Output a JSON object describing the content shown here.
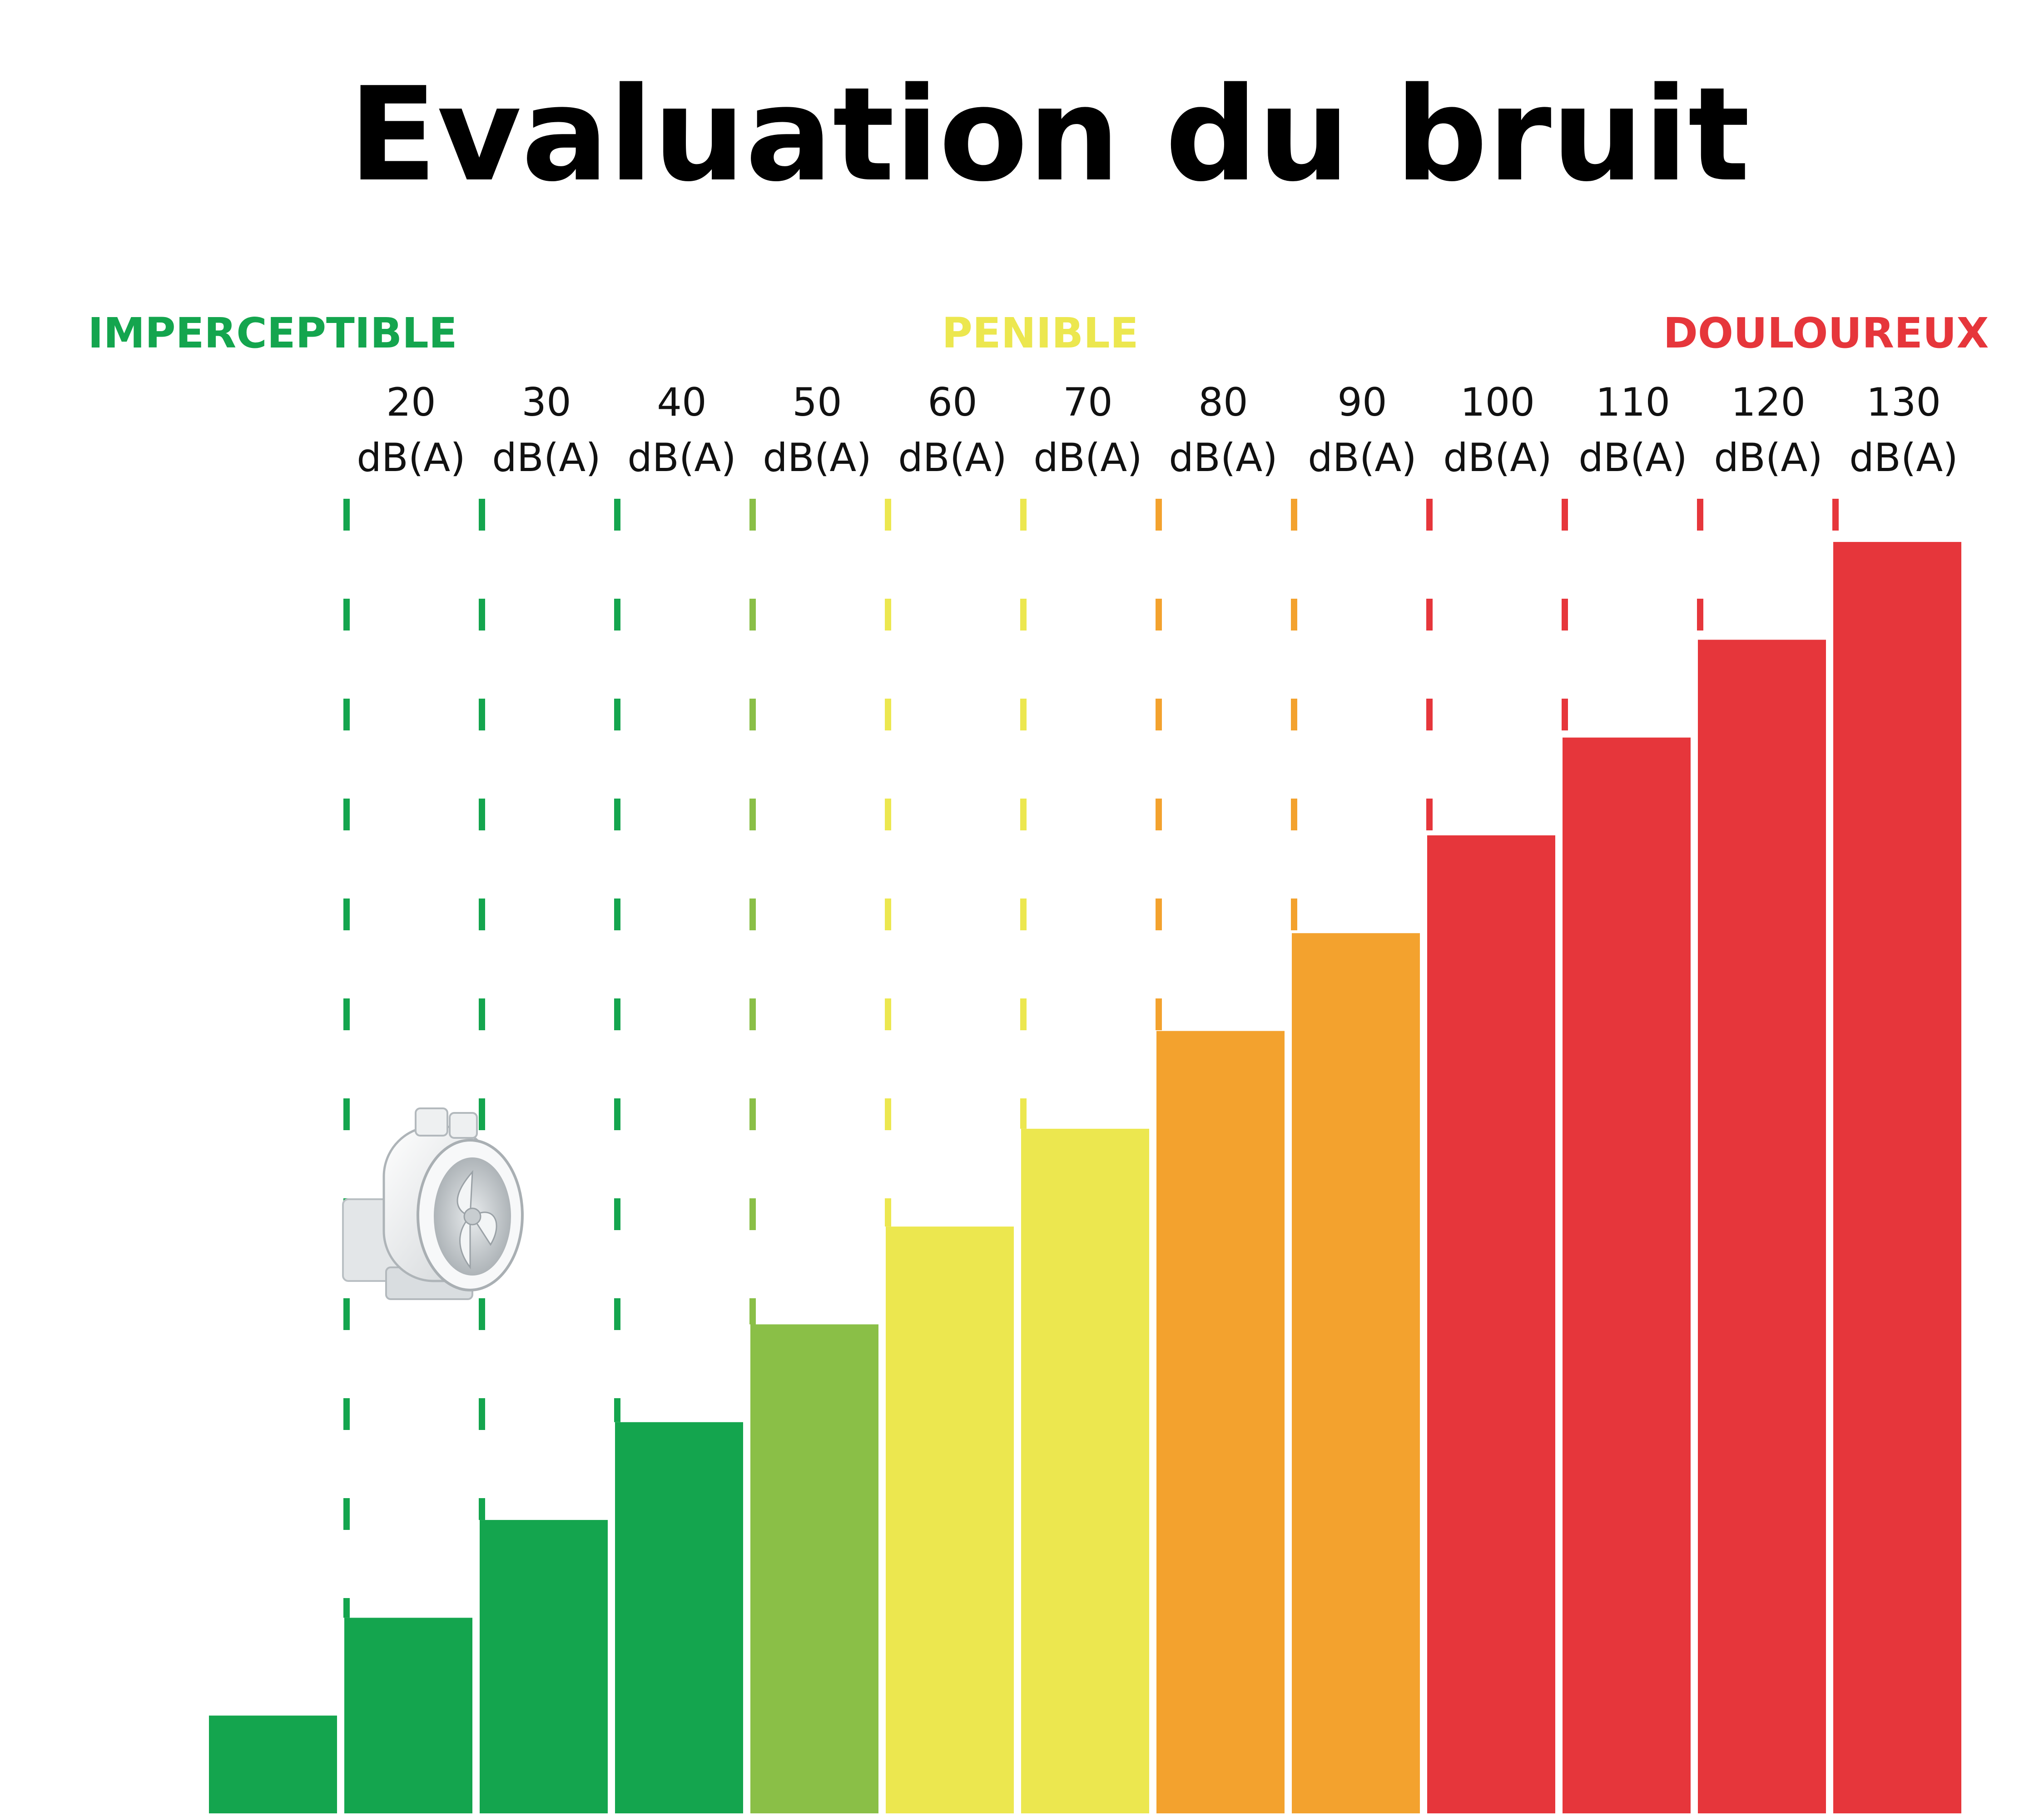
{
  "chart_data": {
    "type": "bar",
    "title": "Evaluation du bruit",
    "zones": [
      {
        "label": "IMPERCEPTIBLE",
        "color": "#14a54e"
      },
      {
        "label": "PENIBLE",
        "color": "#ece74f"
      },
      {
        "label": "DOULOUREUX",
        "color": "#e6363b"
      }
    ],
    "categories": [
      "",
      "20\ndB(A)",
      "30\ndB(A)",
      "40\ndB(A)",
      "50\ndB(A)",
      "60\ndB(A)",
      "70\ndB(A)",
      "80\ndB(A)",
      "90\ndB(A)",
      "100\ndB(A)",
      "110\ndB(A)",
      "120\ndB(A)",
      "130\ndB(A)"
    ],
    "values": [
      10,
      20,
      30,
      40,
      50,
      60,
      70,
      80,
      90,
      100,
      110,
      120,
      130
    ],
    "bar_colors": [
      "#14a54e",
      "#14a54e",
      "#14a54e",
      "#14a54e",
      "#8abf47",
      "#ece74f",
      "#ece74f",
      "#f3a22e",
      "#f3a22e",
      "#e6363b",
      "#e6363b",
      "#e6363b",
      "#e6363b"
    ],
    "xlabel": "",
    "ylabel": "",
    "ylim": [
      0,
      132
    ],
    "grid": false,
    "legend": "top",
    "image_icon": "inline-duct-fan-icon"
  }
}
